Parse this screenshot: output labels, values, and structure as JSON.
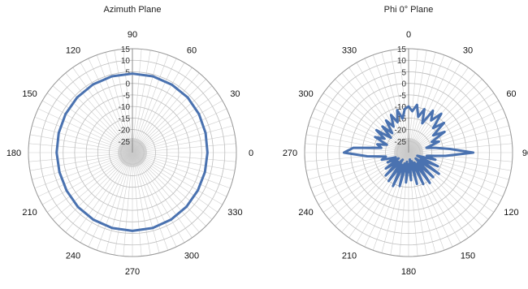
{
  "chart_data": [
    {
      "type": "polar-line",
      "title": "Azimuth Plane",
      "angle_direction": "counterclockwise",
      "zero_angle_at": "right",
      "angle_labels": [
        "0",
        "30",
        "60",
        "90",
        "120",
        "150",
        "180",
        "210",
        "240",
        "270",
        "300",
        "330"
      ],
      "angle_label_degrees": [
        0,
        30,
        60,
        90,
        120,
        150,
        180,
        210,
        240,
        270,
        300,
        330
      ],
      "r_ticks": [
        "15",
        "10",
        "5",
        "0",
        "-5",
        "-10",
        "-15",
        "-20",
        "-25"
      ],
      "rlim": [
        -30,
        15
      ],
      "grid": true,
      "series_color": "#4a72b0",
      "series": [
        {
          "theta": [
            0,
            15,
            30,
            45,
            60,
            75,
            90,
            105,
            120,
            135,
            150,
            165,
            180,
            195,
            210,
            225,
            240,
            255,
            270,
            285,
            300,
            315,
            330,
            345
          ],
          "r": [
            2.5,
            2.8,
            3.3,
            3.8,
            4.0,
            4.2,
            4.2,
            4.2,
            4.1,
            3.8,
            3.4,
            3.0,
            2.8,
            2.7,
            2.9,
            3.3,
            3.6,
            3.8,
            3.9,
            3.8,
            3.5,
            3.1,
            2.7,
            2.5
          ]
        }
      ]
    },
    {
      "type": "polar-line",
      "title": "Phi 0° Plane",
      "angle_direction": "clockwise",
      "zero_angle_at": "top",
      "angle_labels": [
        "0",
        "30",
        "60",
        "90",
        "120",
        "150",
        "180",
        "210",
        "240",
        "270",
        "300",
        "330"
      ],
      "angle_label_degrees": [
        0,
        30,
        60,
        90,
        120,
        150,
        180,
        210,
        240,
        270,
        300,
        330
      ],
      "r_ticks": [
        "15",
        "10",
        "5",
        "0",
        "-5",
        "-10",
        "-15",
        "-20",
        "-25"
      ],
      "rlim": [
        -30,
        15
      ],
      "grid": true,
      "series_color": "#4a72b0",
      "series": [
        {
          "theta": [
            0,
            5,
            10,
            15,
            20,
            25,
            30,
            35,
            40,
            45,
            50,
            55,
            60,
            65,
            70,
            75,
            80,
            85,
            90,
            95,
            100,
            105,
            110,
            115,
            120,
            125,
            130,
            135,
            140,
            145,
            150,
            155,
            160,
            165,
            170,
            175,
            180,
            185,
            190,
            195,
            200,
            205,
            210,
            215,
            220,
            225,
            230,
            235,
            240,
            245,
            250,
            255,
            260,
            265,
            270,
            275,
            280,
            285,
            290,
            295,
            300,
            305,
            310,
            315,
            320,
            325,
            330,
            335,
            340,
            345,
            350,
            355
          ],
          "r": [
            -10,
            -12,
            -9,
            -14,
            -10,
            -16,
            -9,
            -13,
            -8,
            -15,
            -10,
            -17,
            -12,
            -19,
            -16,
            -22,
            -18,
            -12,
            -2,
            -14,
            -22,
            -18,
            -26,
            -16,
            -24,
            -14,
            -26,
            -15,
            -24,
            -14,
            -25,
            -15,
            -26,
            -16,
            -27,
            -18,
            -25,
            -17,
            -26,
            -15,
            -25,
            -14,
            -24,
            -15,
            -26,
            -16,
            -24,
            -18,
            -25,
            -20,
            -24,
            -18,
            -20,
            -12,
            -2,
            -6,
            -18,
            -16,
            -20,
            -14,
            -18,
            -13,
            -20,
            -14,
            -19,
            -13,
            -17,
            -12,
            -16,
            -11,
            -15,
            -11
          ]
        }
      ]
    }
  ]
}
